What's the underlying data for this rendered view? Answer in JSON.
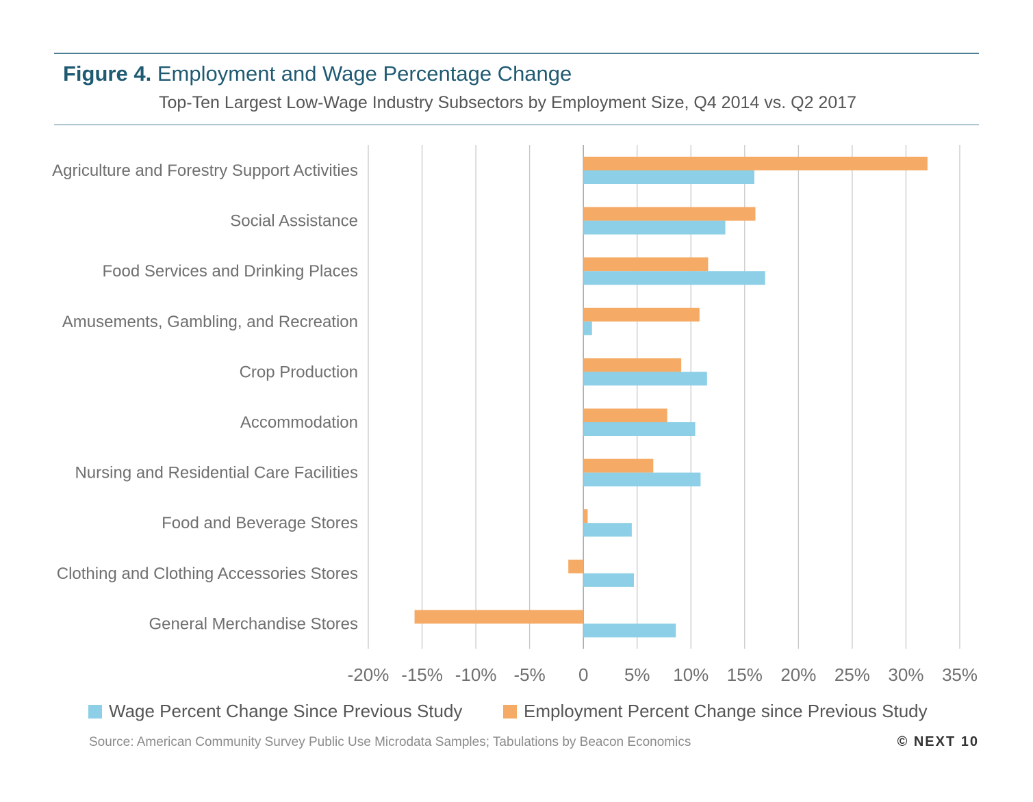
{
  "figure": {
    "number": "Figure 4.",
    "title": "Employment and Wage Percentage Change",
    "subtitle": "Top-Ten Largest Low-Wage Industry Subsectors by Employment Size, Q4 2014 vs. Q2 2017"
  },
  "legend": {
    "wage_label": "Wage Percent Change Since Previous Study",
    "employment_label": "Employment Percent Change since Previous Study"
  },
  "footer": {
    "source": "Source: American Community Survey Public Use Microdata Samples; Tabulations by Beacon Economics",
    "credit": "© NEXT 10"
  },
  "colors": {
    "wage": "#8dcfe6",
    "employment": "#f5ab66",
    "grid": "#c8c8c8",
    "accent": "#1f5a73"
  },
  "chart_data": {
    "type": "bar",
    "orientation": "horizontal",
    "title": "Employment and Wage Percentage Change",
    "subtitle": "Top-Ten Largest Low-Wage Industry Subsectors by Employment Size, Q4 2014 vs. Q2 2017",
    "categories": [
      "Agriculture and Forestry Support Activities",
      "Social Assistance",
      "Food Services and Drinking Places",
      "Amusements, Gambling, and Recreation",
      "Crop Production",
      "Accommodation",
      "Nursing and Residential Care Facilities",
      "Food and Beverage Stores",
      "Clothing and Clothing Accessories Stores",
      "General Merchandise Stores"
    ],
    "series": [
      {
        "name": "Employment Percent Change since Previous Study",
        "color": "#f5ab66",
        "values": [
          32.0,
          16.0,
          11.6,
          10.8,
          9.1,
          7.8,
          6.5,
          0.4,
          -1.4,
          -15.7
        ]
      },
      {
        "name": "Wage Percent Change Since Previous Study",
        "color": "#8dcfe6",
        "values": [
          15.9,
          13.2,
          16.9,
          0.8,
          11.5,
          10.4,
          10.9,
          4.5,
          4.7,
          8.6
        ]
      }
    ],
    "xlim": [
      -20,
      35
    ],
    "xticks": [
      -20,
      -15,
      -10,
      -5,
      0,
      5,
      10,
      15,
      20,
      25,
      30,
      35
    ],
    "xtick_labels": [
      "-20%",
      "-15%",
      "-10%",
      "-5%",
      "0",
      "5%",
      "10%",
      "15%",
      "20%",
      "25%",
      "30%",
      "35%"
    ],
    "grid": "vertical",
    "legend_position": "bottom"
  }
}
